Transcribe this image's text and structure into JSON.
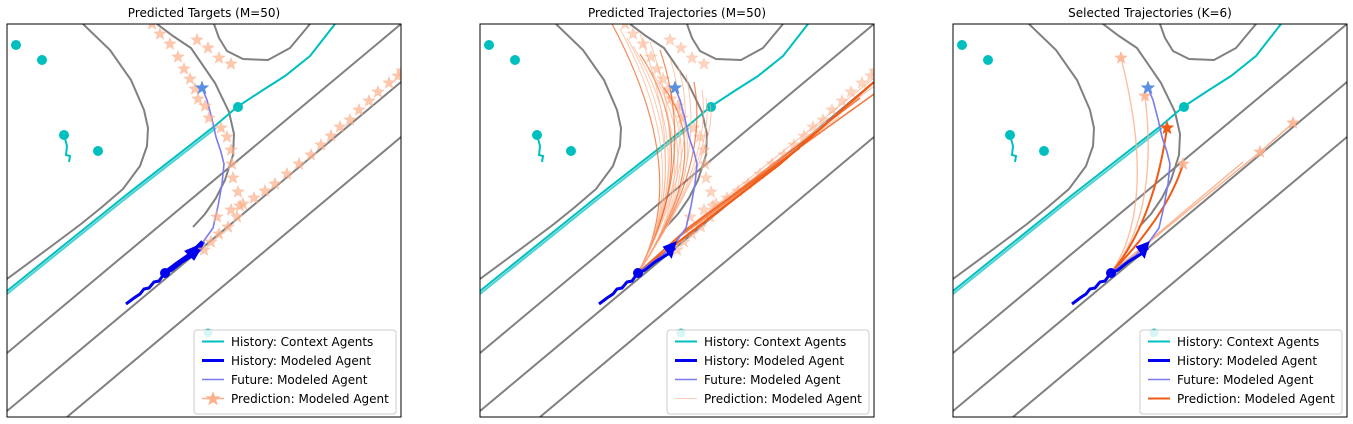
{
  "panels": [
    {
      "id": "targets",
      "title": "Predicted Targets (M=50)",
      "legend": [
        "History: Context Agents",
        "History: Modeled Agent",
        "Future: Modeled Agent",
        "Prediction: Modeled Agent"
      ],
      "prediction_style": "targets"
    },
    {
      "id": "trajectories",
      "title": "Predicted Trajectories (M=50)",
      "legend": [
        "History: Context Agents",
        "History: Modeled Agent",
        "Future: Modeled Agent",
        "Prediction: Modeled Agent"
      ],
      "prediction_style": "trajectories"
    },
    {
      "id": "selected",
      "title": "Selected Trajectories (K=6)",
      "legend": [
        "History: Context Agents",
        "History: Modeled Agent",
        "Future: Modeled Agent",
        "Prediction: Modeled Agent"
      ],
      "prediction_style": "selected"
    }
  ],
  "colors": {
    "lane": "#808080",
    "context_agent": "#00bfbf",
    "modeled_history": "#0000ee",
    "modeled_future": "#7b7bf0",
    "prediction_light": "#fcb08c",
    "prediction_dark": "#f05a14",
    "ground_truth_target": "#5b8fe0"
  },
  "icons": {
    "prediction_marker": "star-icon",
    "context_agent_marker": "circle-icon",
    "heading_marker": "arrow-icon"
  }
}
